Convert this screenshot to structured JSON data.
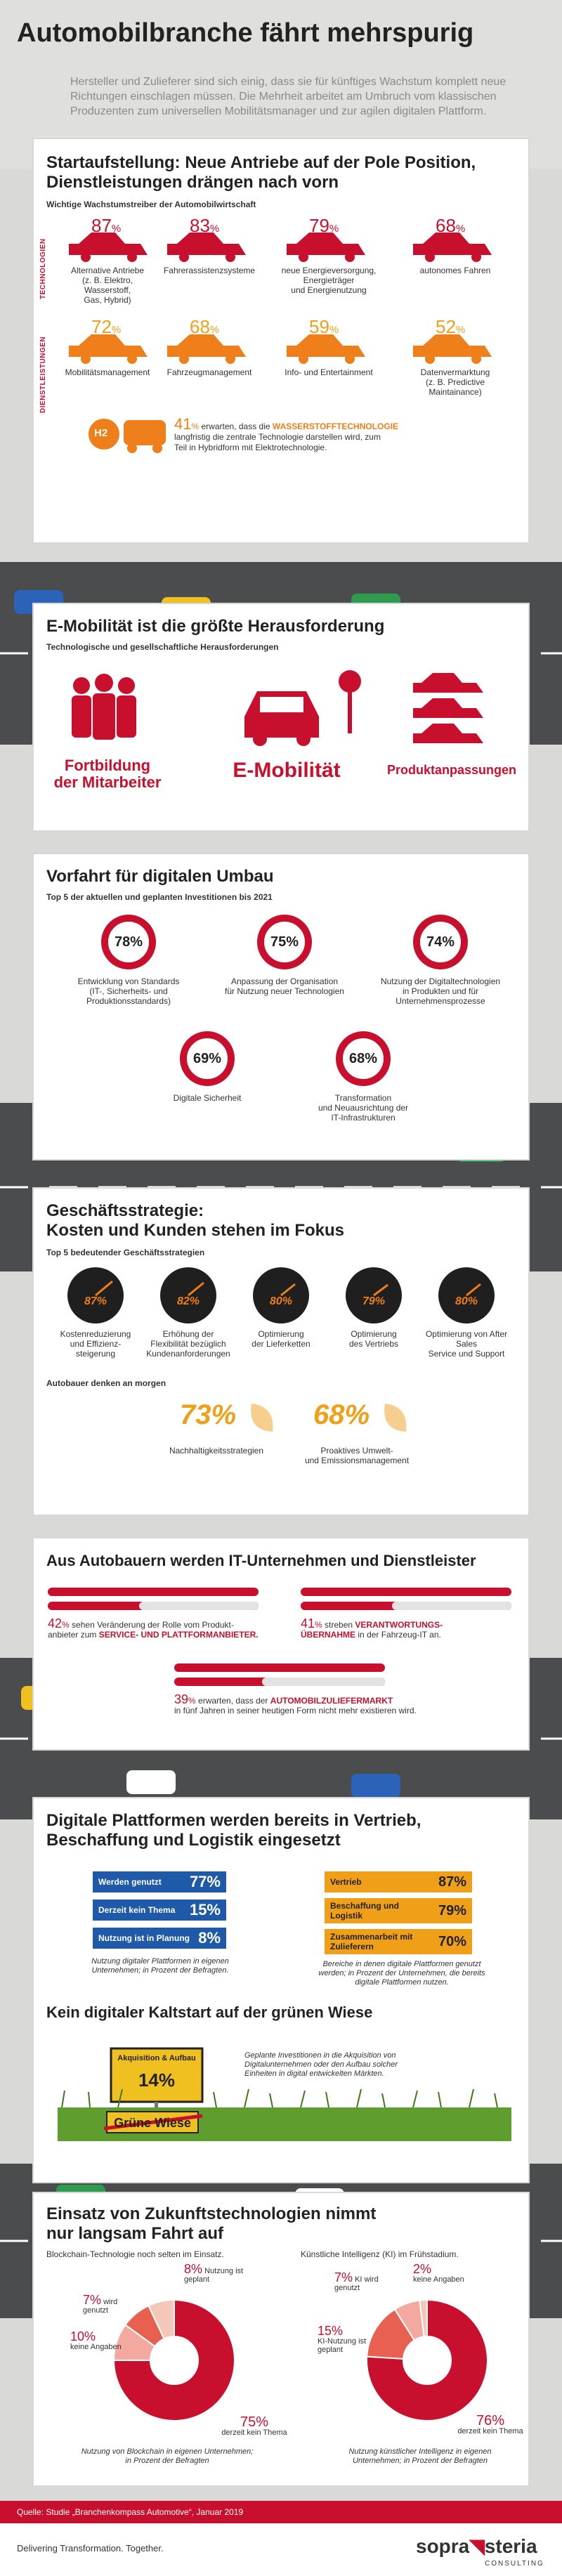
{
  "title": "Automobilbranche fährt mehrspurig",
  "intro": "Hersteller und Zulieferer sind sich einig, dass sie für künftiges Wachstum komplett neue Richtungen einschlagen müssen. Die Mehrheit arbeitet am Umbruch vom klassischen Produzenten zum universellen Mobilitätsmanager und zur agilen digitalen Plattform.",
  "colors": {
    "red": "#c8102e",
    "orange": "#f0a018",
    "blue": "#1f5aa8"
  },
  "s1": {
    "title_l1": "Startaufstellung: Neue Antriebe auf der Pole Position,",
    "title_l2": "Dienstleistungen drängen nach vorn",
    "subtitle": "Wichtige Wachstumstreiber der Automobilwirtschaft",
    "label_tech": "TECHNOLOGIEN",
    "label_serv": "DIENSTLEISTUNGEN",
    "tech": [
      {
        "value": "87",
        "l1": "Alternative Antriebe",
        "l2": "(z. B. Elektro, Wasserstoff,",
        "l3": "Gas, Hybrid)"
      },
      {
        "value": "83",
        "l1": "Fahrerassistenzsysteme",
        "l2": "",
        "l3": ""
      },
      {
        "value": "79",
        "l1": "neue Energieversorgung,",
        "l2": "Energieträger",
        "l3": "und Energienutzung"
      },
      {
        "value": "68",
        "l1": "autonomes Fahren",
        "l2": "",
        "l3": ""
      }
    ],
    "serv": [
      {
        "value": "72",
        "l1": "Mobilitätsmanagement",
        "l2": "",
        "l3": ""
      },
      {
        "value": "68",
        "l1": "Fahrzeugmanagement",
        "l2": "",
        "l3": ""
      },
      {
        "value": "59",
        "l1": "Info- und Entertainment",
        "l2": "",
        "l3": ""
      },
      {
        "value": "52",
        "l1": "Datenvermarktung",
        "l2": "(z. B. Predictive",
        "l3": "Maintainance)"
      }
    ],
    "h2_value": "41",
    "h2_text_a": "erwarten, dass die",
    "h2_highlight": "WASSERSTOFFTECHNOLOGIE",
    "h2_text_b": "langfristig die zentrale Technologie darstellen wird, zum",
    "h2_text_c": "Teil in Hybridform mit Elektrotechnologie.",
    "h2_label": "H2"
  },
  "s2": {
    "title": "E-Mobilität ist die größte Herausforderung",
    "subtitle": "Technologische und gesellschaftliche Herausforderungen",
    "items": [
      "Fortbildung",
      "der Mitarbeiter",
      "E-Mobilität",
      "Produktanpassungen"
    ]
  },
  "s3": {
    "title": "Vorfahrt für digitalen Umbau",
    "subtitle": "Top 5 der aktuellen und geplanten Investitionen bis 2021",
    "items": [
      {
        "value": "78%",
        "l1": "Entwicklung von Standards",
        "l2": "(IT-, Sicherheits- und",
        "l3": "Produktionsstandards)"
      },
      {
        "value": "75%",
        "l1": "Anpassung der Organisation",
        "l2": "für Nutzung neuer Technologien",
        "l3": ""
      },
      {
        "value": "74%",
        "l1": "Nutzung der Digitaltechnologien",
        "l2": "in Produkten und für",
        "l3": "Unternehmensprozesse"
      },
      {
        "value": "69%",
        "l1": "Digitale Sicherheit",
        "l2": "",
        "l3": ""
      },
      {
        "value": "68%",
        "l1": "Transformation",
        "l2": "und Neuausrichtung der",
        "l3": "IT-Infrastrukturen"
      }
    ]
  },
  "s4": {
    "title_l1": "Geschäftsstrategie:",
    "title_l2": "Kosten und Kunden stehen im Fokus",
    "subtitle": "Top 5 bedeutender Geschäftsstrategien",
    "gauges": [
      {
        "value": "87%",
        "l1": "Kostenreduzierung",
        "l2": "und Effizienz-",
        "l3": "steigerung"
      },
      {
        "value": "82%",
        "l1": "Erhöhung der",
        "l2": "Flexibilität bezüglich",
        "l3": "Kundenanforderungen"
      },
      {
        "value": "80%",
        "l1": "Optimierung",
        "l2": "der Lieferketten",
        "l3": ""
      },
      {
        "value": "79%",
        "l1": "Optimierung",
        "l2": "des Vertriebs",
        "l3": ""
      },
      {
        "value": "80%",
        "l1": "Optimierung von After Sales",
        "l2": "Service und Support",
        "l3": ""
      }
    ],
    "sub2": "Autobauer denken an morgen",
    "future": [
      {
        "value": "73%",
        "l1": "Nachhaltigkeitsstrategien",
        "l2": ""
      },
      {
        "value": "68%",
        "l1": "Proaktives Umwelt-",
        "l2": "und Emissionsmanagement"
      }
    ]
  },
  "s5": {
    "title": "Aus Autobauern werden IT-Unternehmen und Dienstleister",
    "a_value": "42",
    "a_text1": "sehen Veränderung der Rolle vom Produkt-",
    "a_text2": "anbieter zum",
    "a_high": "SERVICE- UND PLATTFORMANBIETER.",
    "b_value": "41",
    "b_text1": "streben",
    "b_high1": "VERANTWORTUNGS-",
    "b_high2": "ÜBERNAHME",
    "b_text2": "in der Fahrzeug-IT an.",
    "c_value": "39",
    "c_text1": "erwarten, dass der",
    "c_high": "AUTOMOBILZULIEFERMARKT",
    "c_text2": "in fünf Jahren in seiner heutigen Form nicht mehr existieren wird."
  },
  "s6": {
    "title_l1": "Digitale Plattformen werden bereits in Vertrieb,",
    "title_l2": "Beschaffung und Logistik eingesetzt",
    "blue": [
      {
        "label": "Werden genutzt",
        "value": "77%"
      },
      {
        "label": "Derzeit kein Thema",
        "value": "15%"
      },
      {
        "label": "Nutzung ist in Planung",
        "value": "8%"
      }
    ],
    "blue_note1": "Nutzung digitaler Plattformen in eigenen",
    "blue_note2": "Unternehmen; in Prozent der Befragten.",
    "orange": [
      {
        "label": "Vertrieb",
        "value": "87%"
      },
      {
        "label": "Beschaffung und Logistik",
        "value": "79%"
      },
      {
        "label": "Zusammenarbeit mit Zulieferern",
        "value": "70%"
      }
    ],
    "orange_note1": "Bereiche in denen digitale Plattformen genutzt",
    "orange_note2": "werden; in Prozent der Unternehmen, die bereits",
    "orange_note3": "digitale Plattformen nutzen.",
    "title2": "Kein digitaler Kaltstart auf der grünen Wiese",
    "sign_l1": "Akquisition & Aufbau",
    "sign_val": "14%",
    "sign_bottom": "Grüne Wiese",
    "note1": "Geplante Investitionen in die Akquisition von",
    "note2": "Digitalunternehmen oder den Aufbau solcher",
    "note3": "Einheiten in digital entwickelten Märkten."
  },
  "s7": {
    "title_l1": "Einsatz von Zukunftstechnologien nimmt",
    "title_l2": "nur langsam Fahrt auf",
    "left_head": "Blockchain-Technologie noch selten im Einsatz.",
    "right_head": "Künstliche Intelligenz (KI) im Frühstadium.",
    "left": [
      {
        "value": "8%",
        "label": "Nutzung ist geplant"
      },
      {
        "value": "7%",
        "label": "wird genutzt"
      },
      {
        "value": "10%",
        "label": "keine Angaben"
      },
      {
        "value": "75%",
        "label": "derzeit kein Thema"
      }
    ],
    "right": [
      {
        "value": "7%",
        "label": "KI wird genutzt"
      },
      {
        "value": "2%",
        "label": "keine Angaben"
      },
      {
        "value": "15%",
        "label": "KI-Nutzung ist geplant"
      },
      {
        "value": "76%",
        "label": "derzeit kein Thema"
      }
    ],
    "left_note1": "Nutzung von Blockchain in eigenen Unternehmen;",
    "left_note2": "in Prozent der Befragten",
    "right_note1": "Nutzung künstlicher Intelligenz in eigenen",
    "right_note2": "Unternehmen; in Prozent der Befragten"
  },
  "source": "Quelle: Studie „Branchenkompass Automotive“, Januar 2019",
  "slogan": "Delivering Transformation. Together.",
  "logo_a": "sopra",
  "logo_b": "steria",
  "logo_c": "CONSULTING",
  "chart_data": [
    {
      "type": "bar",
      "title": "Wichtige Wachstumstreiber der Automobilwirtschaft",
      "categories": [
        "Alternative Antriebe",
        "Fahrerassistenzsysteme",
        "neue Energieversorgung, Energieträger und Energienutzung",
        "autonomes Fahren",
        "Mobilitätsmanagement",
        "Fahrzeugmanagement",
        "Info- und Entertainment",
        "Datenvermarktung"
      ],
      "values": [
        87,
        83,
        79,
        68,
        72,
        68,
        59,
        52
      ]
    },
    {
      "type": "bar",
      "title": "Top 5 der aktuellen und geplanten Investitionen bis 2021",
      "categories": [
        "Entwicklung von Standards",
        "Anpassung der Organisation für Nutzung neuer Technologien",
        "Nutzung der Digitaltechnologien in Produkten und für Unternehmensprozesse",
        "Digitale Sicherheit",
        "Transformation und Neuausrichtung der IT-Infrastrukturen"
      ],
      "values": [
        78,
        75,
        74,
        69,
        68
      ]
    },
    {
      "type": "bar",
      "title": "Top 5 bedeutender Geschäftsstrategien",
      "categories": [
        "Kostenreduzierung und Effizienzsteigerung",
        "Erhöhung der Flexibilität bezüglich Kundenanforderungen",
        "Optimierung der Lieferketten",
        "Optimierung des Vertriebs",
        "Optimierung von After Sales Service und Support"
      ],
      "values": [
        87,
        82,
        80,
        79,
        80
      ]
    },
    {
      "type": "pie",
      "title": "Blockchain-Technologie noch selten im Einsatz.",
      "categories": [
        "derzeit kein Thema",
        "keine Angaben",
        "Nutzung ist geplant",
        "wird genutzt"
      ],
      "values": [
        75,
        10,
        8,
        7
      ]
    },
    {
      "type": "pie",
      "title": "Künstliche Intelligenz (KI) im Frühstadium.",
      "categories": [
        "derzeit kein Thema",
        "KI-Nutzung ist geplant",
        "KI wird genutzt",
        "keine Angaben"
      ],
      "values": [
        76,
        15,
        7,
        2
      ]
    }
  ]
}
